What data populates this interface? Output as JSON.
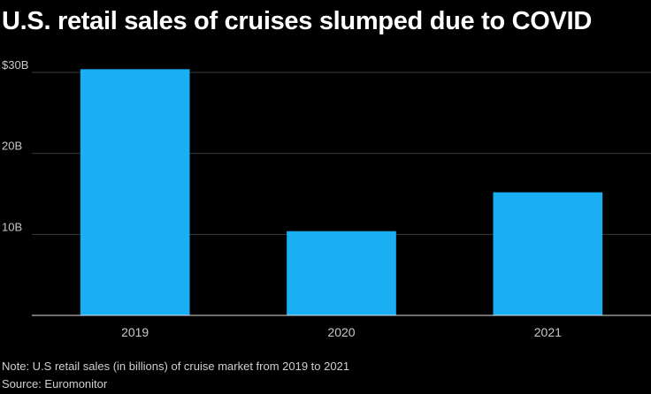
{
  "chart_data": {
    "type": "bar",
    "title": "U.S. retail sales of cruises slumped due to COVID",
    "categories": [
      "2019",
      "2020",
      "2021"
    ],
    "values": [
      30.4,
      10.4,
      15.2
    ],
    "ylim": [
      0,
      30
    ],
    "yticks": [
      {
        "value": 10,
        "label": "10B"
      },
      {
        "value": 20,
        "label": "20B"
      },
      {
        "value": 30,
        "label": "$30B"
      }
    ],
    "grid": true,
    "legend": "none",
    "bar_color": "#1aaef2",
    "note": "Note: U.S retail sales (in billions) of cruise market from 2019 to 2021",
    "source": "Source: Euromonitor"
  }
}
